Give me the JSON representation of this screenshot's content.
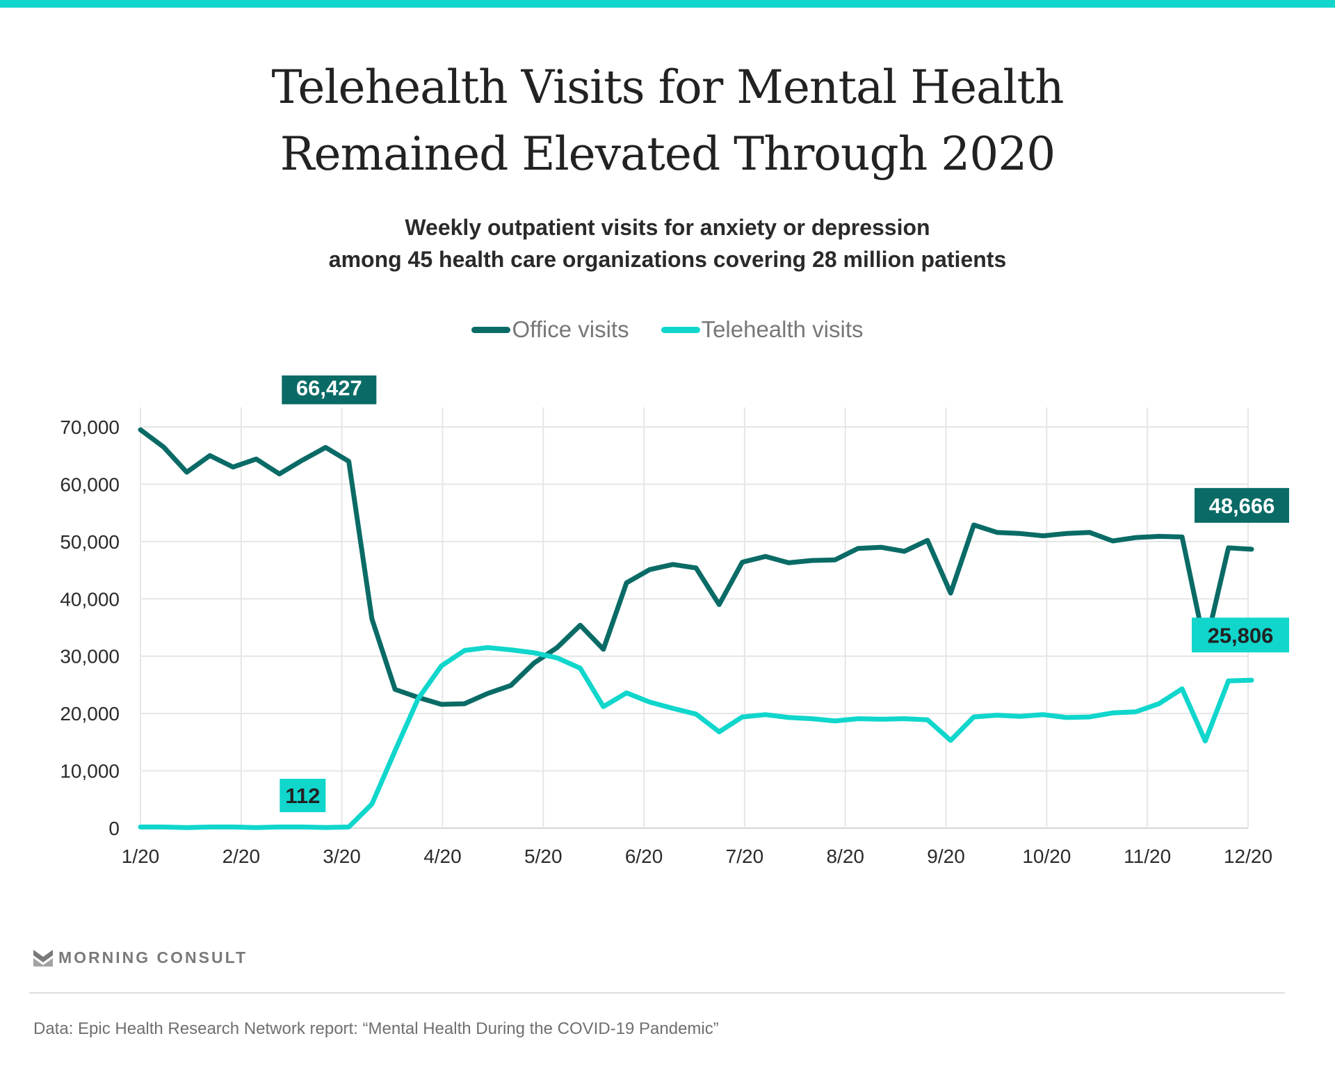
{
  "header": {
    "title_line1": "Telehealth Visits for Mental Health",
    "title_line2": "Remained Elevated Through 2020",
    "subtitle_line1": "Weekly outpatient visits for anxiety or depression",
    "subtitle_line2": "among 45 health care organizations covering 28 million patients"
  },
  "colors": {
    "accent_bar": "#12d6cb",
    "office": "#0a6b66",
    "telehealth": "#10d6cc",
    "grid": "#e6e6e6"
  },
  "chart_data": {
    "type": "line",
    "title": "Telehealth Visits for Mental Health Remained Elevated Through 2020",
    "subtitle": "Weekly outpatient visits for anxiety or depression among 45 health care organizations covering 28 million patients",
    "xlabel": "",
    "ylabel": "",
    "x_tick_labels": [
      "1/20",
      "2/20",
      "3/20",
      "4/20",
      "5/20",
      "6/20",
      "7/20",
      "8/20",
      "9/20",
      "10/20",
      "11/20",
      "12/20"
    ],
    "y_tick_labels": [
      "0",
      "10,000",
      "20,000",
      "30,000",
      "40,000",
      "50,000",
      "60,000",
      "70,000"
    ],
    "y_ticks": [
      0,
      10000,
      20000,
      30000,
      40000,
      50000,
      60000,
      70000
    ],
    "ylim": [
      0,
      70000
    ],
    "x_range_weeks": [
      0,
      48
    ],
    "grid": true,
    "legend_position": "top-center",
    "series": [
      {
        "name": "Office visits",
        "color_key": "office",
        "values": [
          69500,
          66500,
          62100,
          65000,
          63000,
          64400,
          61800,
          64200,
          66427,
          64000,
          36500,
          24200,
          22800,
          21600,
          21700,
          23500,
          24900,
          28800,
          31500,
          35400,
          31200,
          42800,
          45100,
          46000,
          45400,
          39000,
          46400,
          47400,
          46300,
          46700,
          46800,
          48800,
          49000,
          48300,
          50200,
          41000,
          52900,
          51600,
          51400,
          51000,
          51400,
          51600,
          50100,
          50700,
          50900,
          50800,
          31500,
          48900,
          48666
        ]
      },
      {
        "name": "Telehealth visits",
        "color_key": "telehealth",
        "values": [
          200,
          200,
          100,
          200,
          200,
          100,
          200,
          200,
          112,
          200,
          4200,
          13500,
          22600,
          28300,
          31000,
          31500,
          31100,
          30600,
          29700,
          27900,
          21200,
          23600,
          22000,
          20900,
          19900,
          16800,
          19400,
          19800,
          19300,
          19100,
          18700,
          19100,
          19000,
          19100,
          18900,
          15300,
          19400,
          19700,
          19500,
          19800,
          19300,
          19400,
          20100,
          20300,
          21700,
          24300,
          15200,
          25700,
          25806
        ]
      }
    ],
    "annotations": [
      {
        "series": "Office visits",
        "label": "66,427",
        "week_index": 8
      },
      {
        "series": "Telehealth visits",
        "label": "112",
        "week_index": 8
      },
      {
        "series": "Office visits",
        "label": "48,666",
        "week_index": 48
      },
      {
        "series": "Telehealth visits",
        "label": "25,806",
        "week_index": 48
      }
    ]
  },
  "legend": [
    {
      "label": "Office visits",
      "color_key": "office"
    },
    {
      "label": "Telehealth visits",
      "color_key": "telehealth"
    }
  ],
  "footer": {
    "logo_text": "MORNING CONSULT",
    "source": "Data: Epic Health Research Network report: “Mental Health During the COVID-19 Pandemic”"
  }
}
